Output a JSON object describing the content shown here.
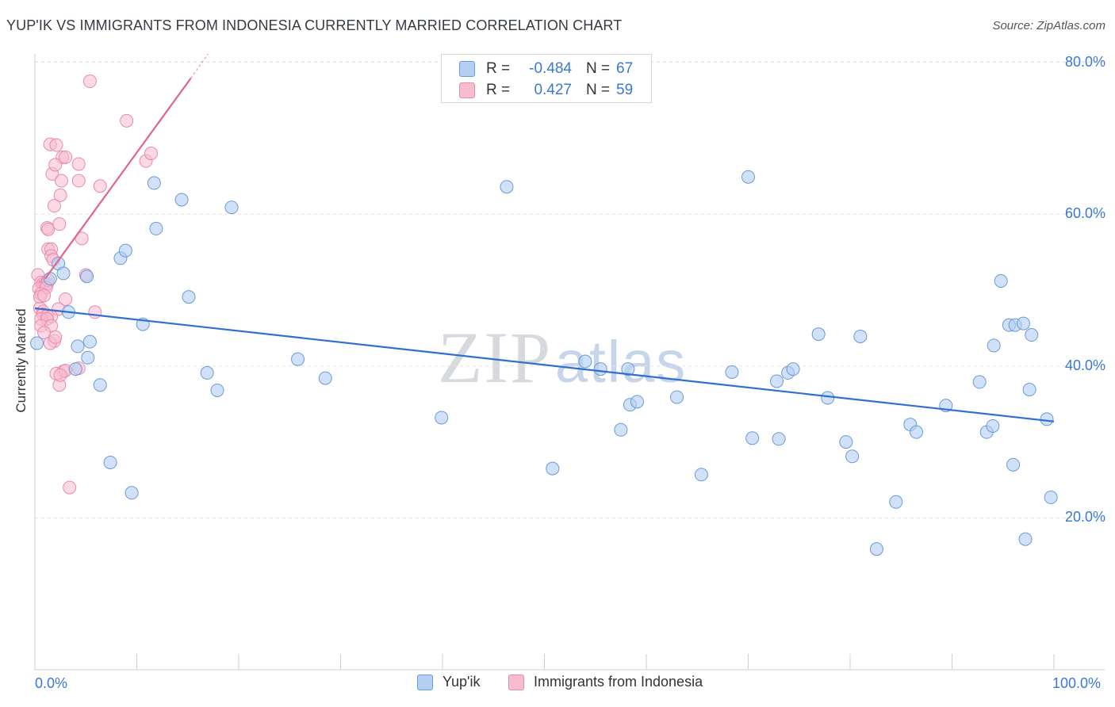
{
  "header": {
    "title": "YUP'IK VS IMMIGRANTS FROM INDONESIA CURRENTLY MARRIED CORRELATION CHART",
    "source": "Source: ZipAtlas.com"
  },
  "watermark": {
    "zip": "ZIP",
    "atlas": "atlas"
  },
  "legend": {
    "rows": [
      {
        "r_label": "R =",
        "r_value": "-0.484",
        "n_label": "N =",
        "n_value": "67"
      },
      {
        "r_label": "R =",
        "r_value": "0.427",
        "n_label": "N =",
        "n_value": "59"
      }
    ]
  },
  "colors": {
    "blue_fill": "#b3cff3",
    "blue_stroke": "#6a9ad8",
    "blue_line": "#2f6fcf",
    "pink_fill": "#f7bcd0",
    "pink_stroke": "#e88aa9",
    "pink_line": "#e0648e",
    "tick_text": "#3a78d6",
    "grid": "#e4e4e4"
  },
  "chart_data": {
    "type": "scatter",
    "title": "YUP'IK VS IMMIGRANTS FROM INDONESIA CURRENTLY MARRIED CORRELATION CHART",
    "xlabel": "",
    "ylabel": "Currently Married",
    "xlim": [
      0,
      100
    ],
    "ylim": [
      0,
      82
    ],
    "x_tick_labels": [
      "0.0%",
      "100.0%"
    ],
    "y_ticks": [
      20,
      40,
      60,
      80
    ],
    "y_tick_labels": [
      "20.0%",
      "40.0%",
      "60.0%",
      "80.0%"
    ],
    "legend_position": "top-center",
    "series": [
      {
        "name": "Yup'ik",
        "r": -0.484,
        "n": 67,
        "trend": {
          "x": [
            0,
            100
          ],
          "y": [
            47.6,
            32.7
          ]
        },
        "points": [
          [
            0.2,
            43
          ],
          [
            1.5,
            51.5
          ],
          [
            2.3,
            53.5
          ],
          [
            2.8,
            52.2
          ],
          [
            3.3,
            47.1
          ],
          [
            4.2,
            42.6
          ],
          [
            5.2,
            41.1
          ],
          [
            5.4,
            43.2
          ],
          [
            5.1,
            51.8
          ],
          [
            6.4,
            37.5
          ],
          [
            7.4,
            27.3
          ],
          [
            8.4,
            54.2
          ],
          [
            8.9,
            55.2
          ],
          [
            9.5,
            23.3
          ],
          [
            10.6,
            45.5
          ],
          [
            11.7,
            64.1
          ],
          [
            11.9,
            58.1
          ],
          [
            14.4,
            61.9
          ],
          [
            15.1,
            49.1
          ],
          [
            16.9,
            39.1
          ],
          [
            17.9,
            36.8
          ],
          [
            19.3,
            60.9
          ],
          [
            25.8,
            40.9
          ],
          [
            28.5,
            38.4
          ],
          [
            39.9,
            33.2
          ],
          [
            46.3,
            63.6
          ],
          [
            50.8,
            26.5
          ],
          [
            55.5,
            39.6
          ],
          [
            57.5,
            31.6
          ],
          [
            58.2,
            39.6
          ],
          [
            58.4,
            34.9
          ],
          [
            59.1,
            35.3
          ],
          [
            63.0,
            35.9
          ],
          [
            65.4,
            25.7
          ],
          [
            68.4,
            39.2
          ],
          [
            70.0,
            64.9
          ],
          [
            70.4,
            30.5
          ],
          [
            72.8,
            38.0
          ],
          [
            73.0,
            30.4
          ],
          [
            73.9,
            39.1
          ],
          [
            74.4,
            39.6
          ],
          [
            76.9,
            44.2
          ],
          [
            77.8,
            35.8
          ],
          [
            79.6,
            30.0
          ],
          [
            80.2,
            28.1
          ],
          [
            81.0,
            43.9
          ],
          [
            82.6,
            15.9
          ],
          [
            84.5,
            22.1
          ],
          [
            85.9,
            32.3
          ],
          [
            86.5,
            31.3
          ],
          [
            89.4,
            34.8
          ],
          [
            92.7,
            37.9
          ],
          [
            93.4,
            31.3
          ],
          [
            94.0,
            32.1
          ],
          [
            94.1,
            42.7
          ],
          [
            94.8,
            51.2
          ],
          [
            95.6,
            45.4
          ],
          [
            96.0,
            27.0
          ],
          [
            96.2,
            45.4
          ],
          [
            97.0,
            45.6
          ],
          [
            97.2,
            17.2
          ],
          [
            97.6,
            36.9
          ],
          [
            97.8,
            44.1
          ],
          [
            99.3,
            33.0
          ],
          [
            99.7,
            22.7
          ],
          [
            54.0,
            40.6
          ],
          [
            4.0,
            39.6
          ]
        ]
      },
      {
        "name": "Immigrants from Indonesia",
        "r": 0.427,
        "n": 59,
        "trend": {
          "x": [
            1.0,
            15.3
          ],
          "y": [
            51.5,
            77.9
          ]
        },
        "trend_dashed": {
          "x": [
            15.3,
            17.0
          ],
          "y": [
            77.9,
            81.1
          ]
        },
        "points": [
          [
            5.4,
            77.5
          ],
          [
            9.0,
            72.3
          ],
          [
            10.9,
            67.0
          ],
          [
            11.4,
            68.0
          ],
          [
            1.5,
            69.2
          ],
          [
            2.1,
            69.1
          ],
          [
            2.7,
            67.5
          ],
          [
            3.0,
            67.5
          ],
          [
            4.3,
            66.6
          ],
          [
            1.7,
            65.3
          ],
          [
            2.0,
            66.5
          ],
          [
            2.6,
            64.4
          ],
          [
            4.3,
            64.4
          ],
          [
            6.4,
            63.7
          ],
          [
            2.5,
            62.5
          ],
          [
            1.9,
            61.1
          ],
          [
            2.4,
            58.7
          ],
          [
            1.2,
            58.2
          ],
          [
            1.3,
            58.0
          ],
          [
            4.6,
            56.8
          ],
          [
            1.3,
            55.4
          ],
          [
            1.6,
            55.4
          ],
          [
            1.6,
            54.5
          ],
          [
            1.8,
            54.0
          ],
          [
            5.0,
            52.0
          ],
          [
            0.3,
            52.0
          ],
          [
            0.6,
            51.0
          ],
          [
            0.8,
            50.8
          ],
          [
            1.0,
            50.7
          ],
          [
            1.2,
            50.8
          ],
          [
            1.3,
            51.3
          ],
          [
            0.4,
            50.2
          ],
          [
            1.1,
            50.3
          ],
          [
            0.6,
            49.5
          ],
          [
            0.5,
            49.1
          ],
          [
            0.9,
            49.3
          ],
          [
            3.0,
            48.8
          ],
          [
            0.5,
            47.6
          ],
          [
            2.3,
            47.5
          ],
          [
            5.9,
            47.1
          ],
          [
            0.8,
            47.2
          ],
          [
            0.8,
            46.8
          ],
          [
            1.2,
            46.6
          ],
          [
            1.6,
            46.5
          ],
          [
            0.6,
            46.2
          ],
          [
            1.2,
            46.2
          ],
          [
            0.6,
            45.3
          ],
          [
            1.6,
            45.3
          ],
          [
            0.9,
            44.4
          ],
          [
            1.9,
            43.3
          ],
          [
            1.5,
            43.0
          ],
          [
            2.0,
            43.8
          ],
          [
            2.8,
            39.3
          ],
          [
            2.1,
            39.0
          ],
          [
            3.0,
            39.4
          ],
          [
            4.3,
            39.7
          ],
          [
            2.4,
            37.5
          ],
          [
            3.4,
            24.0
          ],
          [
            2.5,
            38.8
          ]
        ]
      }
    ]
  },
  "bottom_legend": {
    "items": [
      "Yup'ik",
      "Immigrants from Indonesia"
    ]
  }
}
